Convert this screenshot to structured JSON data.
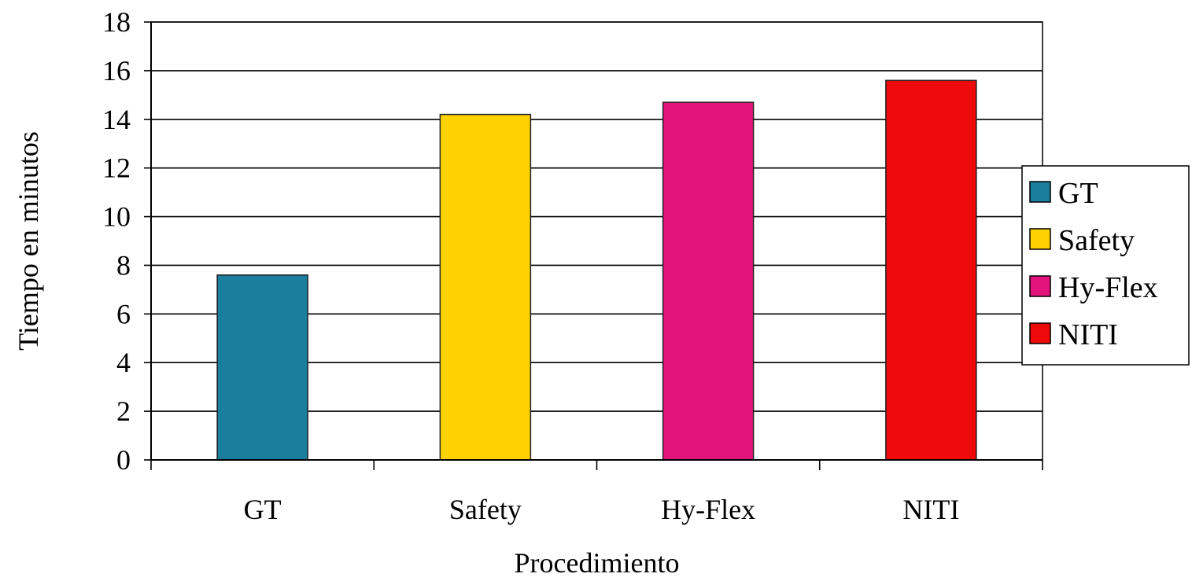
{
  "chart_data": {
    "type": "bar",
    "categories": [
      "GT",
      "Safety",
      "Hy-Flex",
      "NITI"
    ],
    "values": [
      7.6,
      14.2,
      14.7,
      15.6
    ],
    "colors": [
      "#1a7f9c",
      "#ffd200",
      "#e3137c",
      "#ee0a0a"
    ],
    "title": "",
    "xlabel": "Procedimiento",
    "ylabel": "Tiempo en minutos",
    "ylim": [
      0,
      18
    ],
    "yticks": [
      "0",
      "2",
      "4",
      "6",
      "8",
      "10",
      "12",
      "14",
      "16",
      "18"
    ],
    "grid": true,
    "legend": {
      "position": "right",
      "entries": [
        "GT",
        "Safety",
        "Hy-Flex",
        "NITI"
      ]
    }
  }
}
